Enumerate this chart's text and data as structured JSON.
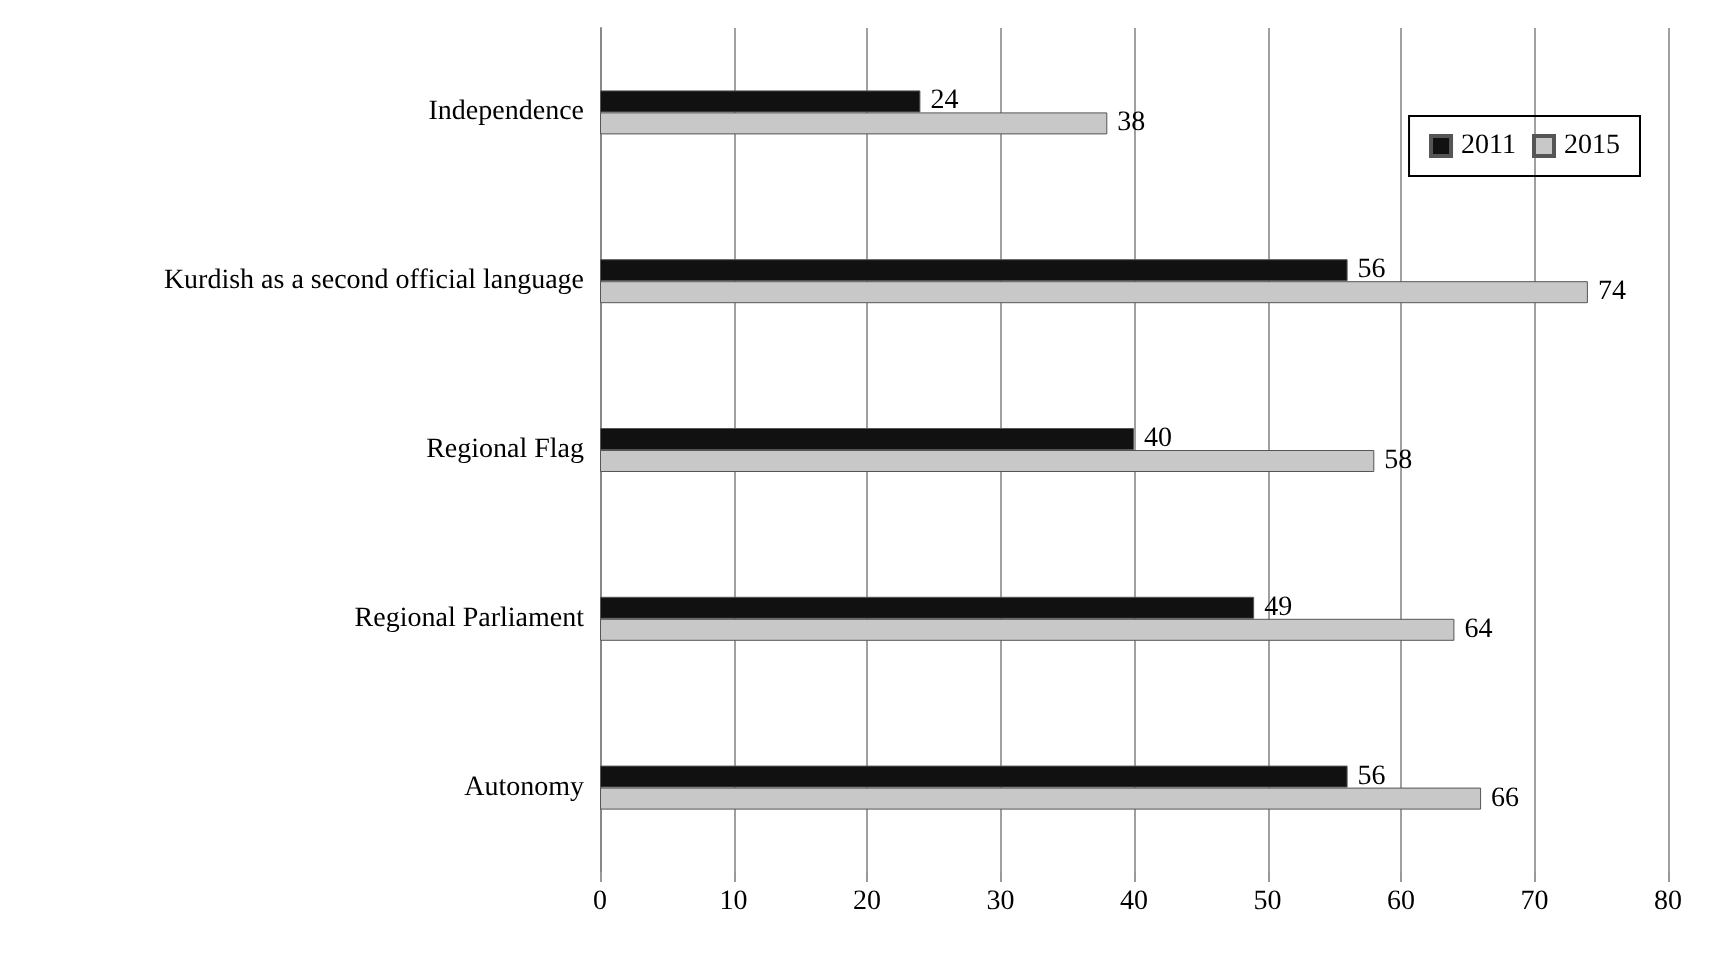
{
  "chart_data": {
    "type": "bar",
    "orientation": "horizontal",
    "categories": [
      "Independence",
      "Kurdish as a second official language",
      "Regional Flag",
      "Regional Parliament",
      "Autonomy"
    ],
    "series": [
      {
        "name": "2011",
        "color": "#111111",
        "values": [
          24,
          56,
          40,
          49,
          56
        ]
      },
      {
        "name": "2015",
        "color": "#c8c8c8",
        "values": [
          38,
          74,
          58,
          64,
          66
        ]
      }
    ],
    "xlim": [
      0,
      80
    ],
    "xticks": [
      0,
      10,
      20,
      30,
      40,
      50,
      60,
      70,
      80
    ],
    "grid": "x",
    "legend": "top right",
    "data_labels": true
  }
}
